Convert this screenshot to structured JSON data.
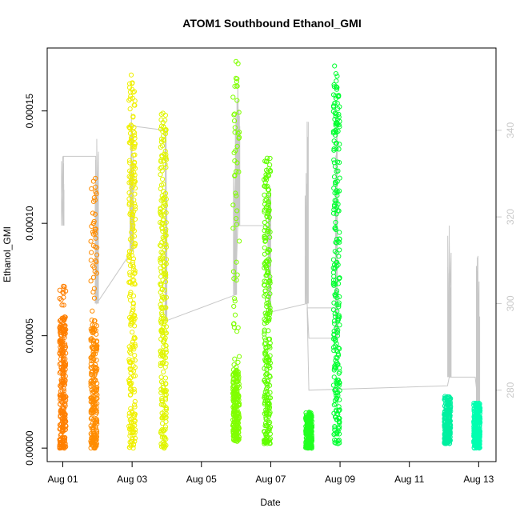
{
  "chart_data": {
    "type": "scatter",
    "title": "ATOM1 Southbound Ethanol_GMI",
    "xlabel": "Date",
    "ylabel": "Ethanol_GMI",
    "x_ticks": [
      "Aug 01",
      "Aug 03",
      "Aug 05",
      "Aug 07",
      "Aug 09",
      "Aug 11",
      "Aug 13"
    ],
    "x_tick_days": [
      1,
      3,
      5,
      7,
      9,
      11,
      13
    ],
    "xlim_days": [
      0.55,
      13.5
    ],
    "ylim": [
      -6e-06,
      0.000178
    ],
    "y_ticks": [
      0,
      5e-05,
      0.0001,
      0.00015
    ],
    "y_tick_labels": [
      "0.00000",
      "0.00005",
      "0.00010",
      "0.00015"
    ],
    "y2_ticks": [
      280,
      300,
      320,
      340
    ],
    "y2_tick_labels": [
      "280",
      "300",
      "320",
      "340"
    ],
    "y2lim": [
      263.5,
      359
    ],
    "grid": false,
    "legend": "none",
    "colors": {
      "trace": "#c8c8c8",
      "box": "#000000",
      "right_axis": "#c8c8c8"
    },
    "series": [
      {
        "day": 1.0,
        "y_max": 7.2e-05,
        "y_min": 0.0,
        "dense_max": 5.9e-05,
        "color": "#ff7f00"
      },
      {
        "day": 1.9,
        "y_max": 0.00012,
        "y_min": 0.0,
        "dense_max": 5.7e-05,
        "color": "#ff8c00"
      },
      {
        "day": 3.0,
        "y_max": 0.000166,
        "y_min": 0.0,
        "dense_max": 0.000163,
        "color": "#f0f000"
      },
      {
        "day": 3.9,
        "y_max": 0.000149,
        "y_min": 0.0,
        "dense_max": 0.00015,
        "color": "#e0f500"
      },
      {
        "day": 6.0,
        "y_max": 0.000172,
        "y_min": 3e-06,
        "dense_max": 3.5e-05,
        "color": "#80ff00"
      },
      {
        "day": 6.9,
        "y_max": 0.000129,
        "y_min": 2e-06,
        "dense_max": 0.000128,
        "color": "#60ff00"
      },
      {
        "day": 8.1,
        "y_max": 1.6e-05,
        "y_min": 0.0,
        "dense_max": 1.5e-05,
        "color": "#20ff20"
      },
      {
        "day": 8.9,
        "y_max": 0.00017,
        "y_min": 2e-06,
        "dense_max": 0.000163,
        "color": "#00ff30"
      },
      {
        "day": 12.1,
        "y_max": 2.3e-05,
        "y_min": 2e-06,
        "dense_max": 2.3e-05,
        "color": "#00f0a0"
      },
      {
        "day": 12.95,
        "y_max": 2e-05,
        "y_min": 0.0,
        "dense_max": 2e-05,
        "color": "#00ffb0"
      }
    ],
    "secondary_trace": [
      {
        "day": 1.0,
        "lo": 318,
        "hi": 334
      },
      {
        "day": 1.02,
        "lo": 334,
        "hi": 334
      },
      {
        "day": 1.95,
        "lo": 334,
        "hi": 334
      },
      {
        "day": 1.98,
        "lo": 300,
        "hi": 338
      },
      {
        "day": 2.98,
        "lo": 312,
        "hi": 344
      },
      {
        "day": 3.0,
        "lo": 341,
        "hi": 341
      },
      {
        "day": 3.95,
        "lo": 340,
        "hi": 340
      },
      {
        "day": 3.98,
        "lo": 296,
        "hi": 340
      },
      {
        "day": 5.98,
        "lo": 302,
        "hi": 340
      },
      {
        "day": 6.05,
        "lo": 318,
        "hi": 351
      },
      {
        "day": 6.1,
        "lo": 318,
        "hi": 318
      },
      {
        "day": 6.9,
        "lo": 318,
        "hi": 318
      },
      {
        "day": 6.98,
        "lo": 298,
        "hi": 327
      },
      {
        "day": 8.05,
        "lo": 300,
        "hi": 342
      },
      {
        "day": 8.1,
        "lo": 292,
        "hi": 292
      },
      {
        "day": 8.85,
        "lo": 292,
        "hi": 292
      },
      {
        "day": 8.9,
        "lo": 292,
        "hi": 344
      },
      {
        "day": 8.92,
        "lo": 299,
        "hi": 299
      },
      {
        "day": 8.05,
        "lo": 299,
        "hi": 299
      },
      {
        "day": 8.1,
        "lo": 280,
        "hi": 280
      },
      {
        "day": 12.1,
        "lo": 281,
        "hi": 281
      },
      {
        "day": 12.15,
        "lo": 283,
        "hi": 318
      },
      {
        "day": 12.9,
        "lo": 283,
        "hi": 283
      },
      {
        "day": 12.98,
        "lo": 277,
        "hi": 311
      }
    ]
  }
}
